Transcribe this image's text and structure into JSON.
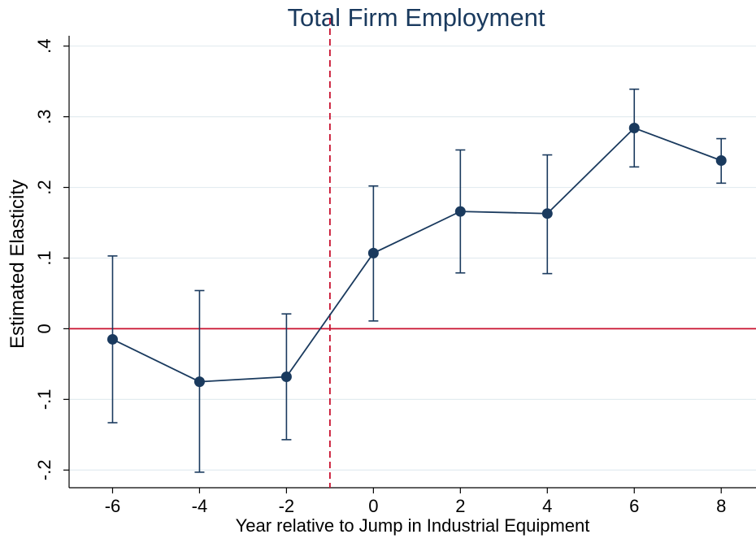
{
  "chart_data": {
    "type": "line",
    "title": "Total Firm Employment",
    "xlabel": "Year relative to Jump in Industrial Equipment",
    "ylabel": "Estimated Elasticity",
    "xlim": [
      -7.0,
      8.8
    ],
    "ylim": [
      -0.225,
      0.41
    ],
    "x_ticks": [
      -6,
      -4,
      -2,
      0,
      2,
      4,
      6,
      8
    ],
    "y_ticks": [
      -0.2,
      -0.1,
      0,
      0.1,
      0.2,
      0.3,
      0.4
    ],
    "y_tick_labels": [
      "-.2",
      "-.1",
      "0",
      ".1",
      ".2",
      ".3",
      ".4"
    ],
    "grid": true,
    "reference_lines": {
      "vertical_x": -1,
      "horizontal_y": 0
    },
    "series": [
      {
        "x": [
          -6,
          -4,
          -2,
          0,
          2,
          4,
          6,
          8
        ],
        "values": [
          -0.015,
          -0.075,
          -0.068,
          0.107,
          0.166,
          0.163,
          0.284,
          0.238
        ],
        "ci_low": [
          -0.133,
          -0.203,
          -0.157,
          0.011,
          0.079,
          0.078,
          0.229,
          0.206
        ],
        "ci_high": [
          0.103,
          0.054,
          0.021,
          0.202,
          0.253,
          0.246,
          0.339,
          0.269
        ]
      }
    ],
    "colors": {
      "series": "#1a3a5e",
      "reference": "#c8102e",
      "grid": "#e3ecf0"
    }
  }
}
